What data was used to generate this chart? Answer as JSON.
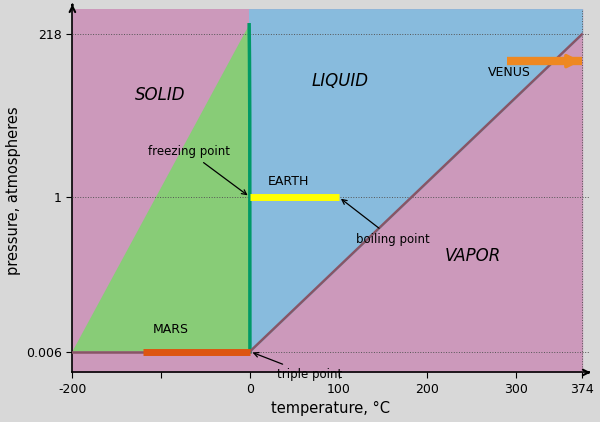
{
  "xlabel": "temperature, °C",
  "ylabel": "pressure, atmospheres",
  "bg_color": "#d8d8d8",
  "solid_color": "#88cc77",
  "liquid_color": "#88bbdd",
  "vapor_color": "#cc99bb",
  "fusion_line_color": "#009966",
  "vp_line_color": "#885566",
  "sub_line_color": "#885566",
  "earth_bar_color": "#ffff00",
  "mars_bar_color": "#dd5511",
  "venus_arrow_color": "#ee8822",
  "T_triple": 0.01,
  "P_triple": 0.006,
  "T_critical": 374,
  "P_critical": 218,
  "T_freeze_1atm": 0.0,
  "T_boil_1atm": 100.0,
  "T_min": -200,
  "T_max": 374,
  "P_min": 0.003,
  "P_max_display": 300,
  "label_solid": "SOLID",
  "label_liquid": "LIQUID",
  "label_vapor": "VAPOR",
  "label_earth": "EARTH",
  "label_mars": "MARS",
  "label_venus": "VENUS",
  "label_freezing": "freezing point",
  "label_boiling": "boiling point",
  "label_triple": "triple point"
}
